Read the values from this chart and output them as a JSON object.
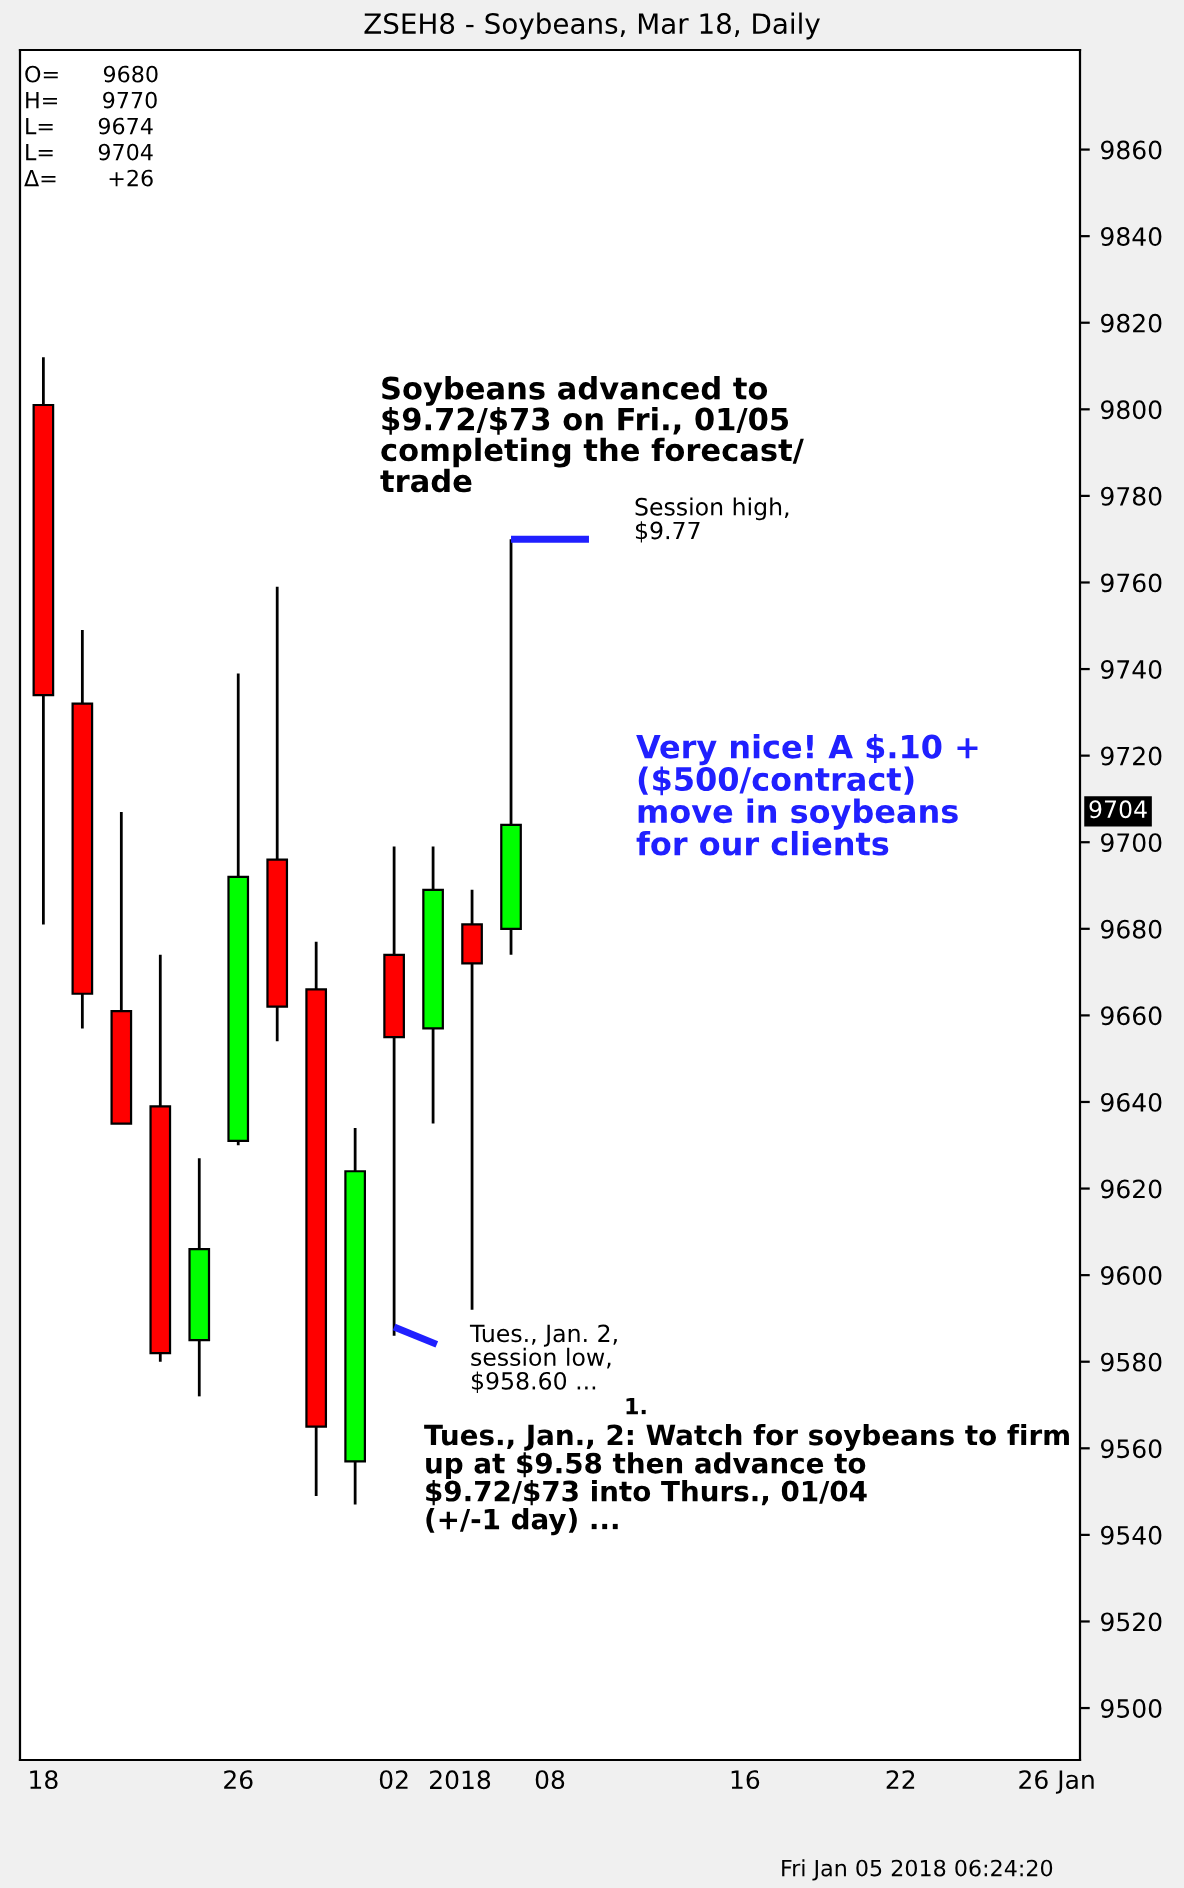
{
  "chart_data": {
    "type": "candlestick",
    "title": "ZSEH8 - Soybeans, Mar 18, Daily",
    "categories": [
      "18",
      null,
      null,
      null,
      null,
      "26",
      null,
      null,
      null,
      "02",
      null,
      null,
      null,
      "08",
      null,
      null,
      null,
      null,
      "16",
      null,
      null,
      null,
      "22",
      null,
      null,
      null,
      "26 Jan"
    ],
    "ohlc": [
      [
        9801,
        9812,
        9681,
        9734
      ],
      [
        9732,
        9749,
        9657,
        9665
      ],
      [
        9661,
        9707,
        9635,
        9635
      ],
      [
        9639,
        9674,
        9580,
        9582
      ],
      [
        9585,
        9627,
        9572,
        9606
      ],
      [
        9631,
        9739,
        9630,
        9692
      ],
      [
        9696,
        9759,
        9654,
        9662
      ],
      [
        9666,
        9677,
        9549,
        9565
      ],
      [
        9557,
        9634,
        9547,
        9624
      ],
      [
        9674,
        9699,
        9586,
        9655
      ],
      [
        9657,
        9699,
        9635,
        9689
      ],
      [
        9681,
        9689,
        9592,
        9672
      ],
      [
        9680,
        9770,
        9674,
        9704
      ],
      null,
      null,
      null,
      null,
      null,
      null,
      null,
      null,
      null,
      null,
      null,
      null,
      null,
      null
    ],
    "colors": [
      "#ff0000",
      "#ff0000",
      "#ff0000",
      "#ff0000",
      "#00ff00",
      "#00ff00",
      "#ff0000",
      "#ff0000",
      "#00ff00",
      "#ff0000",
      "#00ff00",
      "#ff0000",
      "#00ff00",
      null,
      null,
      null,
      null,
      null,
      null,
      null,
      null,
      null,
      null,
      null,
      null,
      null,
      null
    ],
    "ylim": [
      9488,
      9883
    ],
    "yticks": [
      9500,
      9520,
      9540,
      9560,
      9580,
      9600,
      9620,
      9640,
      9660,
      9680,
      9700,
      9720,
      9740,
      9760,
      9780,
      9800,
      9820,
      9840,
      9860
    ],
    "grid": false,
    "annotations": [
      "O=      9680",
      "H=      9770",
      "L=      9674",
      "L=      9704",
      "Δ=       +26",
      "Soybeans advanced to\n$9.72/$73 on Fri., 01/05\ncompleting the forecast/\ntrade",
      "Session high,\n$9.77",
      "Very nice! A $.10 +\n($500/contract)\nmove in soybeans\nfor our clients",
      "Tues., Jan. 2,\nsession low,\n$958.60 ...",
      "1.",
      "Tues., Jan., 2: Watch for soybeans to firm\nup at $9.58 then advance to\n$9.72/$73 into Thurs., 01/04\n(+/-1 day) ...",
      "2018",
      "9704",
      "Fri Jan 05 2018 06:24:20"
    ]
  }
}
